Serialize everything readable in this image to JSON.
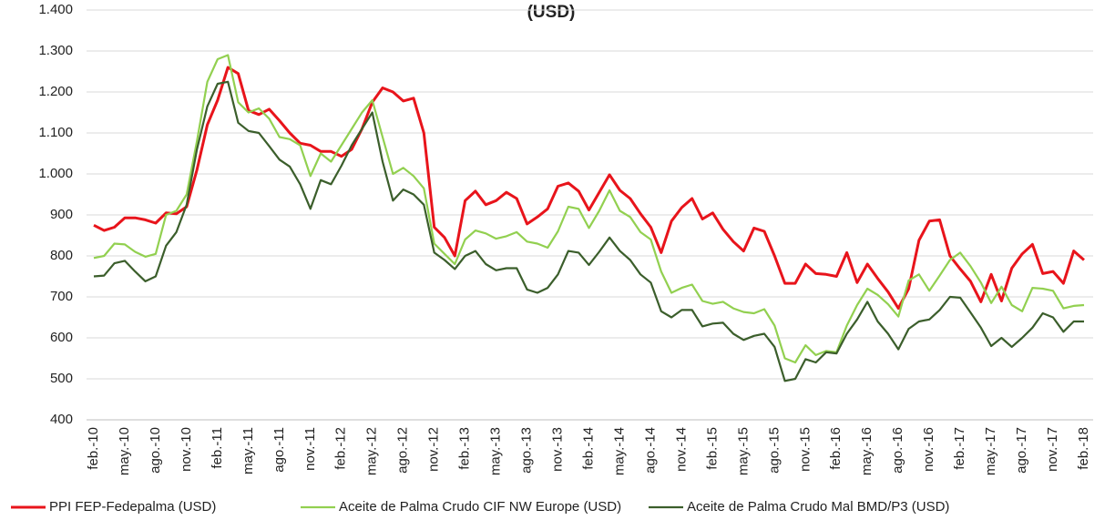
{
  "chart_data": {
    "type": "line",
    "title": "(USD)",
    "categories": [
      "feb.-10",
      null,
      null,
      "may.-10",
      null,
      null,
      "ago.-10",
      null,
      null,
      "nov.-10",
      null,
      null,
      "feb.-11",
      null,
      null,
      "may.-11",
      null,
      null,
      "ago.-11",
      null,
      null,
      "nov.-11",
      null,
      null,
      "feb.-12",
      null,
      null,
      "may.-12",
      null,
      null,
      "ago.-12",
      null,
      null,
      "nov.-12",
      null,
      null,
      "feb.-13",
      null,
      null,
      "may.-13",
      null,
      null,
      "ago.-13",
      null,
      null,
      "nov.-13",
      null,
      null,
      "feb.-14",
      null,
      null,
      "may.-14",
      null,
      null,
      "ago.-14",
      null,
      null,
      "nov.-14",
      null,
      null,
      "feb.-15",
      null,
      null,
      "may.-15",
      null,
      null,
      "ago.-15",
      null,
      null,
      "nov.-15",
      null,
      null,
      "feb.-16",
      null,
      null,
      "may.-16",
      null,
      null,
      "ago.-16",
      null,
      null,
      "nov.-16",
      null,
      null,
      "feb.-17",
      null,
      null,
      "may.-17",
      null,
      null,
      "ago.-17",
      null,
      null,
      "nov.-17",
      null,
      null,
      "feb.-18"
    ],
    "series": [
      {
        "name": "PPI FEP-Fedepalma (USD)",
        "color": "#e8141b",
        "values": [
          875,
          862,
          870,
          893,
          893,
          888,
          880,
          905,
          903,
          920,
          1010,
          1120,
          1180,
          1260,
          1245,
          1155,
          1145,
          1158,
          1130,
          1100,
          1075,
          1070,
          1055,
          1055,
          1043,
          1060,
          1110,
          1175,
          1210,
          1200,
          1178,
          1185,
          1100,
          870,
          845,
          800,
          935,
          958,
          925,
          935,
          955,
          940,
          878,
          895,
          915,
          970,
          978,
          958,
          912,
          955,
          998,
          960,
          940,
          903,
          870,
          808,
          885,
          918,
          940,
          890,
          905,
          865,
          835,
          812,
          868,
          860,
          800,
          733,
          733,
          780,
          757,
          755,
          750,
          808,
          735,
          780,
          745,
          712,
          672,
          720,
          838,
          885,
          888,
          800,
          768,
          738,
          688,
          755,
          690,
          770,
          805,
          828,
          757,
          762,
          733,
          812,
          790
        ]
      },
      {
        "name": "Aceite de Palma Crudo CIF NW Europe (USD)",
        "color": "#92d050",
        "values": [
          795,
          800,
          830,
          828,
          810,
          798,
          805,
          900,
          910,
          950,
          1080,
          1225,
          1280,
          1290,
          1175,
          1150,
          1160,
          1135,
          1090,
          1085,
          1070,
          995,
          1050,
          1030,
          1070,
          1110,
          1150,
          1180,
          1090,
          1000,
          1015,
          995,
          965,
          830,
          805,
          780,
          840,
          862,
          855,
          842,
          848,
          858,
          835,
          830,
          820,
          860,
          920,
          915,
          868,
          910,
          960,
          910,
          895,
          858,
          840,
          762,
          710,
          722,
          730,
          690,
          683,
          688,
          672,
          663,
          660,
          670,
          630,
          550,
          540,
          582,
          558,
          568,
          565,
          630,
          680,
          720,
          705,
          682,
          652,
          740,
          755,
          715,
          752,
          790,
          808,
          775,
          735,
          685,
          725,
          680,
          665,
          722,
          720,
          715,
          672,
          678,
          680
        ]
      },
      {
        "name": "Aceite de Palma Crudo Mal BMD/P3 (USD)",
        "color": "#3b5e2b",
        "values": [
          750,
          752,
          782,
          788,
          762,
          738,
          750,
          825,
          858,
          925,
          1060,
          1165,
          1220,
          1225,
          1125,
          1105,
          1100,
          1068,
          1035,
          1018,
          975,
          915,
          985,
          975,
          1020,
          1070,
          1110,
          1150,
          1030,
          935,
          962,
          950,
          925,
          808,
          790,
          768,
          800,
          812,
          780,
          765,
          770,
          770,
          718,
          710,
          722,
          755,
          812,
          808,
          778,
          810,
          845,
          812,
          790,
          755,
          735,
          665,
          650,
          668,
          668,
          628,
          635,
          637,
          610,
          595,
          605,
          610,
          578,
          495,
          500,
          548,
          540,
          565,
          562,
          610,
          645,
          688,
          640,
          610,
          572,
          622,
          640,
          645,
          668,
          700,
          698,
          662,
          625,
          580,
          600,
          578,
          600,
          625,
          660,
          650,
          615,
          640,
          640
        ]
      }
    ],
    "ylim": [
      400,
      1400
    ],
    "yticks": [
      400,
      500,
      600,
      700,
      800,
      900,
      {
        "value": 1000,
        "label": "1.000"
      },
      {
        "value": 1100,
        "label": "1.100"
      },
      {
        "value": 1200,
        "label": "1.200"
      },
      {
        "value": 1300,
        "label": "1.300"
      },
      {
        "value": 1400,
        "label": "1.400"
      }
    ],
    "grid": true,
    "legend": "bottom"
  }
}
